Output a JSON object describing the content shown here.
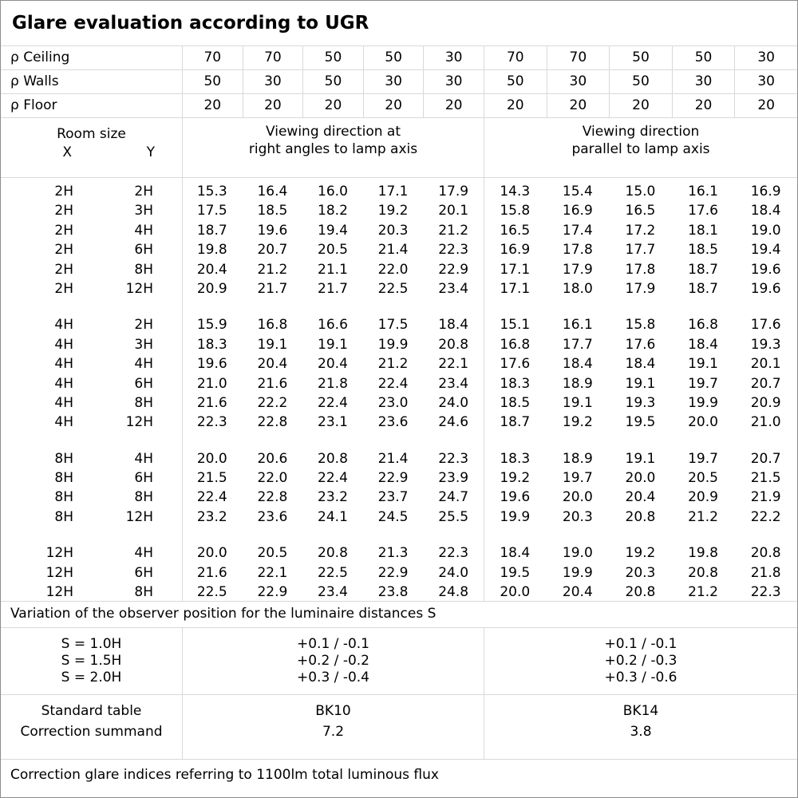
{
  "title": "Glare evaluation according to UGR",
  "reflectance": {
    "rows": [
      {
        "label": "ρ Ceiling",
        "values": [
          "70",
          "70",
          "50",
          "50",
          "30",
          "70",
          "70",
          "50",
          "50",
          "30"
        ]
      },
      {
        "label": "ρ Walls",
        "values": [
          "50",
          "30",
          "50",
          "30",
          "30",
          "50",
          "30",
          "50",
          "30",
          "30"
        ]
      },
      {
        "label": "ρ Floor",
        "values": [
          "20",
          "20",
          "20",
          "20",
          "20",
          "20",
          "20",
          "20",
          "20",
          "20"
        ]
      }
    ]
  },
  "header": {
    "room_size": "Room size",
    "x_label": "X",
    "y_label": "Y",
    "left_group_line1": "Viewing direction at",
    "left_group_line2": "right angles to lamp axis",
    "right_group_line1": "Viewing direction",
    "right_group_line2": "parallel to lamp axis"
  },
  "ugr_table": {
    "blocks": [
      {
        "rows": [
          {
            "x": "2H",
            "y": "2H",
            "right_angles": [
              "15.3",
              "16.4",
              "16.0",
              "17.1",
              "17.9"
            ],
            "parallel": [
              "14.3",
              "15.4",
              "15.0",
              "16.1",
              "16.9"
            ]
          },
          {
            "x": "2H",
            "y": "3H",
            "right_angles": [
              "17.5",
              "18.5",
              "18.2",
              "19.2",
              "20.1"
            ],
            "parallel": [
              "15.8",
              "16.9",
              "16.5",
              "17.6",
              "18.4"
            ]
          },
          {
            "x": "2H",
            "y": "4H",
            "right_angles": [
              "18.7",
              "19.6",
              "19.4",
              "20.3",
              "21.2"
            ],
            "parallel": [
              "16.5",
              "17.4",
              "17.2",
              "18.1",
              "19.0"
            ]
          },
          {
            "x": "2H",
            "y": "6H",
            "right_angles": [
              "19.8",
              "20.7",
              "20.5",
              "21.4",
              "22.3"
            ],
            "parallel": [
              "16.9",
              "17.8",
              "17.7",
              "18.5",
              "19.4"
            ]
          },
          {
            "x": "2H",
            "y": "8H",
            "right_angles": [
              "20.4",
              "21.2",
              "21.1",
              "22.0",
              "22.9"
            ],
            "parallel": [
              "17.1",
              "17.9",
              "17.8",
              "18.7",
              "19.6"
            ]
          },
          {
            "x": "2H",
            "y": "12H",
            "right_angles": [
              "20.9",
              "21.7",
              "21.7",
              "22.5",
              "23.4"
            ],
            "parallel": [
              "17.1",
              "18.0",
              "17.9",
              "18.7",
              "19.6"
            ]
          }
        ]
      },
      {
        "rows": [
          {
            "x": "4H",
            "y": "2H",
            "right_angles": [
              "15.9",
              "16.8",
              "16.6",
              "17.5",
              "18.4"
            ],
            "parallel": [
              "15.1",
              "16.1",
              "15.8",
              "16.8",
              "17.6"
            ]
          },
          {
            "x": "4H",
            "y": "3H",
            "right_angles": [
              "18.3",
              "19.1",
              "19.1",
              "19.9",
              "20.8"
            ],
            "parallel": [
              "16.8",
              "17.7",
              "17.6",
              "18.4",
              "19.3"
            ]
          },
          {
            "x": "4H",
            "y": "4H",
            "right_angles": [
              "19.6",
              "20.4",
              "20.4",
              "21.2",
              "22.1"
            ],
            "parallel": [
              "17.6",
              "18.4",
              "18.4",
              "19.1",
              "20.1"
            ]
          },
          {
            "x": "4H",
            "y": "6H",
            "right_angles": [
              "21.0",
              "21.6",
              "21.8",
              "22.4",
              "23.4"
            ],
            "parallel": [
              "18.3",
              "18.9",
              "19.1",
              "19.7",
              "20.7"
            ]
          },
          {
            "x": "4H",
            "y": "8H",
            "right_angles": [
              "21.6",
              "22.2",
              "22.4",
              "23.0",
              "24.0"
            ],
            "parallel": [
              "18.5",
              "19.1",
              "19.3",
              "19.9",
              "20.9"
            ]
          },
          {
            "x": "4H",
            "y": "12H",
            "right_angles": [
              "22.3",
              "22.8",
              "23.1",
              "23.6",
              "24.6"
            ],
            "parallel": [
              "18.7",
              "19.2",
              "19.5",
              "20.0",
              "21.0"
            ]
          }
        ]
      },
      {
        "rows": [
          {
            "x": "8H",
            "y": "4H",
            "right_angles": [
              "20.0",
              "20.6",
              "20.8",
              "21.4",
              "22.3"
            ],
            "parallel": [
              "18.3",
              "18.9",
              "19.1",
              "19.7",
              "20.7"
            ]
          },
          {
            "x": "8H",
            "y": "6H",
            "right_angles": [
              "21.5",
              "22.0",
              "22.4",
              "22.9",
              "23.9"
            ],
            "parallel": [
              "19.2",
              "19.7",
              "20.0",
              "20.5",
              "21.5"
            ]
          },
          {
            "x": "8H",
            "y": "8H",
            "right_angles": [
              "22.4",
              "22.8",
              "23.2",
              "23.7",
              "24.7"
            ],
            "parallel": [
              "19.6",
              "20.0",
              "20.4",
              "20.9",
              "21.9"
            ]
          },
          {
            "x": "8H",
            "y": "12H",
            "right_angles": [
              "23.2",
              "23.6",
              "24.1",
              "24.5",
              "25.5"
            ],
            "parallel": [
              "19.9",
              "20.3",
              "20.8",
              "21.2",
              "22.2"
            ]
          }
        ]
      },
      {
        "rows": [
          {
            "x": "12H",
            "y": "4H",
            "right_angles": [
              "20.0",
              "20.5",
              "20.8",
              "21.3",
              "22.3"
            ],
            "parallel": [
              "18.4",
              "19.0",
              "19.2",
              "19.8",
              "20.8"
            ]
          },
          {
            "x": "12H",
            "y": "6H",
            "right_angles": [
              "21.6",
              "22.1",
              "22.5",
              "22.9",
              "24.0"
            ],
            "parallel": [
              "19.5",
              "19.9",
              "20.3",
              "20.8",
              "21.8"
            ]
          },
          {
            "x": "12H",
            "y": "8H",
            "right_angles": [
              "22.5",
              "22.9",
              "23.4",
              "23.8",
              "24.8"
            ],
            "parallel": [
              "20.0",
              "20.4",
              "20.8",
              "21.2",
              "22.3"
            ]
          }
        ]
      }
    ]
  },
  "observer_variation": {
    "note": "Variation of the observer position for the luminaire distances S",
    "labels": [
      "S = 1.0H",
      "S = 1.5H",
      "S = 2.0H"
    ],
    "right_angles": [
      "+0.1 / -0.1",
      "+0.2 / -0.2",
      "+0.3 / -0.4"
    ],
    "parallel": [
      "+0.1 / -0.1",
      "+0.2 / -0.3",
      "+0.3 / -0.6"
    ]
  },
  "standard": {
    "labels": [
      "Standard table",
      "Correction summand"
    ],
    "right_angles": [
      "BK10",
      "7.2"
    ],
    "parallel": [
      "BK14",
      "3.8"
    ]
  },
  "footer": "Correction glare indices referring to 1100lm total luminous flux",
  "colors": {
    "grid_line": "#d9d9d9",
    "frame": "#8c8c8c",
    "text": "#000000"
  }
}
